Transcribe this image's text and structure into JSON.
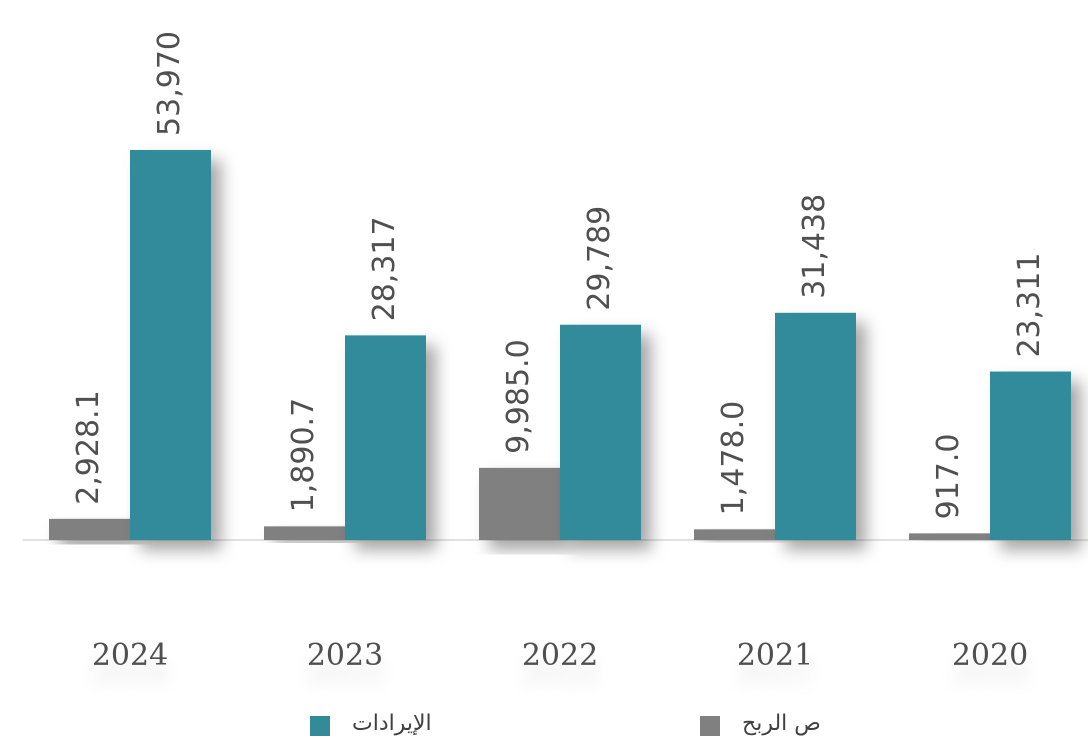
{
  "chart_data": {
    "type": "bar",
    "categories": [
      "2024",
      "2023",
      "2022",
      "2021",
      "2020"
    ],
    "series": [
      {
        "name": "ص الربح",
        "color": "#808080",
        "values": [
          2928.1,
          1890.7,
          9985.0,
          1478.0,
          917.0
        ],
        "value_labels": [
          "2,928.1",
          "1,890.7",
          "9,985.0",
          "1,478.0",
          "917.0"
        ]
      },
      {
        "name": "الإيرادات",
        "color": "#338b9a",
        "values": [
          53970,
          28317,
          29789,
          31438,
          23311
        ],
        "value_labels": [
          "53,970",
          "28,317",
          "29,789",
          "31,438",
          "23,311"
        ]
      }
    ],
    "ylim": [
      0,
      60000
    ]
  }
}
